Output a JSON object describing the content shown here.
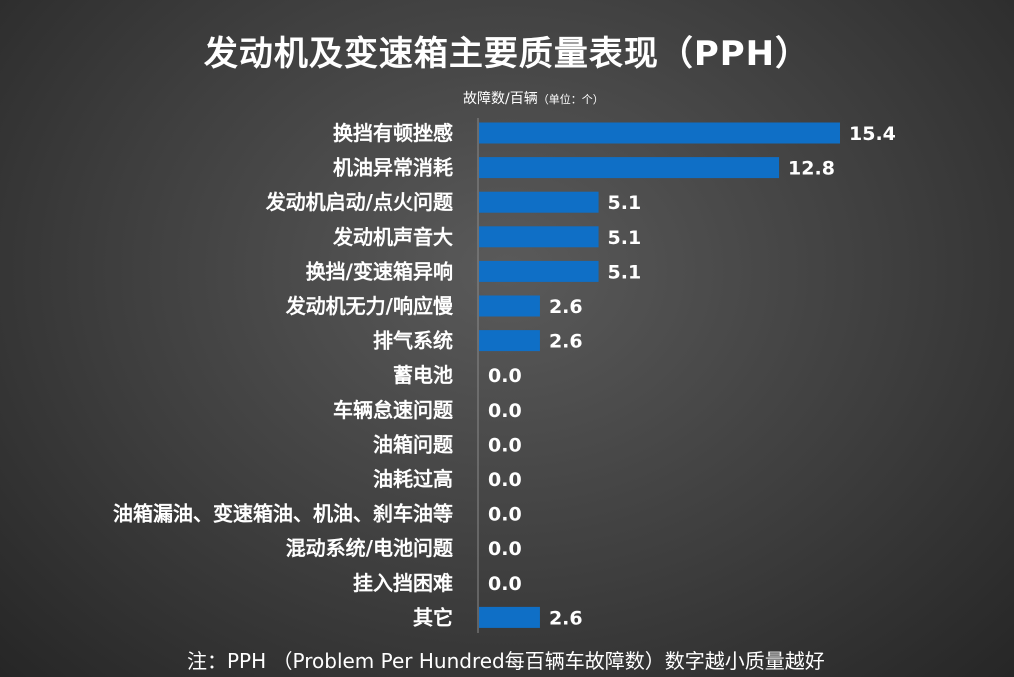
{
  "header": {
    "title": "发动机及变速箱主要质量表现（PPH）",
    "unit_main": "故障数/百辆",
    "unit_small": "（单位：个）"
  },
  "footnote": "注：PPH （Problem Per Hundred每百辆车故障数）数字越小质量越好",
  "colors": {
    "bar": "#0f6fc6",
    "background": "#3e3e3e",
    "text": "#ffffff"
  },
  "chart_data": {
    "type": "bar",
    "orientation": "horizontal",
    "title": "发动机及变速箱主要质量表现（PPH）",
    "xlabel": "故障数/百辆（单位：个）",
    "ylabel": "",
    "categories": [
      "换挡有顿挫感",
      "机油异常消耗",
      "发动机启动/点火问题",
      "发动机声音大",
      "换挡/变速箱异响",
      "发动机无力/响应慢",
      "排气系统",
      "蓄电池",
      "车辆怠速问题",
      "油箱问题",
      "油耗过高",
      "油箱漏油、变速箱油、机油、刹车油等",
      "混动系统/电池问题",
      "挂入挡困难",
      "其它"
    ],
    "values": [
      15.4,
      12.8,
      5.1,
      5.1,
      5.1,
      2.6,
      2.6,
      0.0,
      0.0,
      0.0,
      0.0,
      0.0,
      0.0,
      0.0,
      2.6
    ],
    "value_labels": [
      "15.4",
      "12.8",
      "5.1",
      "5.1",
      "5.1",
      "2.6",
      "2.6",
      "0.0",
      "0.0",
      "0.0",
      "0.0",
      "0.0",
      "0.0",
      "0.0",
      "2.6"
    ],
    "xlim": [
      0,
      15.4
    ],
    "grid": false,
    "legend": "none"
  }
}
